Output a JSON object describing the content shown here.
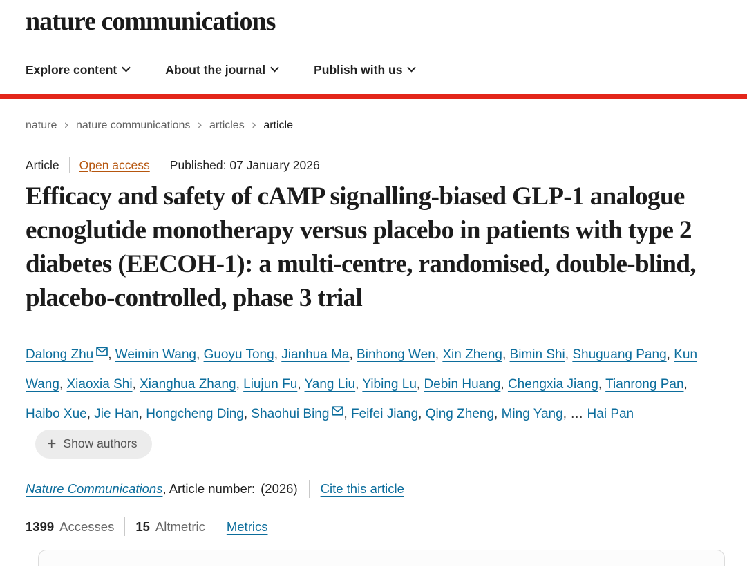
{
  "colors": {
    "accent_red": "#e3261a",
    "link_blue": "#0c6d9c",
    "open_access_orange": "#b6560e",
    "show_authors_pill_bg": "#ececec"
  },
  "header": {
    "logo_text": "nature communications",
    "nav_items": [
      {
        "label": "Explore content"
      },
      {
        "label": "About the journal"
      },
      {
        "label": "Publish with us"
      }
    ]
  },
  "breadcrumb": {
    "links": [
      {
        "label": "nature"
      },
      {
        "label": "nature communications"
      },
      {
        "label": "articles"
      }
    ],
    "separator": "›",
    "current": "article"
  },
  "meta": {
    "type_label": "Article",
    "access_label": "Open access",
    "published_text": "Published: 07 January 2026"
  },
  "title": "Efficacy and safety of cAMP signalling-biased GLP-1 analogue ecnoglutide monotherapy versus placebo in patients with type 2 diabetes (EECOH-1): a multi-centre, randomised, double-blind, placebo-controlled, phase 3 trial",
  "authors": {
    "separator": ", ",
    "list": [
      {
        "name": "Dalong Zhu",
        "envelope": true
      },
      {
        "name": "Weimin Wang"
      },
      {
        "name": "Guoyu Tong"
      },
      {
        "name": "Jianhua Ma"
      },
      {
        "name": "Binhong Wen"
      },
      {
        "name": "Xin Zheng"
      },
      {
        "name": "Bimin Shi"
      },
      {
        "name": "Shuguang Pang"
      },
      {
        "name": "Kun Wang"
      },
      {
        "name": "Xiaoxia Shi"
      },
      {
        "name": "Xianghua Zhang"
      },
      {
        "name": "Liujun Fu"
      },
      {
        "name": "Yang Liu"
      },
      {
        "name": "Yibing Lu"
      },
      {
        "name": "Debin Huang"
      },
      {
        "name": "Chengxia Jiang"
      },
      {
        "name": "Tianrong Pan"
      },
      {
        "name": "Haibo Xue"
      },
      {
        "name": "Jie Han"
      },
      {
        "name": "Hongcheng Ding"
      },
      {
        "name": "Shaohui Bing",
        "envelope": true
      },
      {
        "name": "Feifei Jiang"
      },
      {
        "name": "Qing Zheng"
      },
      {
        "name": "Ming Yang"
      },
      {
        "name": "Hai Pan",
        "pre": "… "
      }
    ],
    "show_authors": {
      "plus": "+",
      "label": "Show authors"
    }
  },
  "citation": {
    "journal": "Nature Communications",
    "article_number_text": ", Article number:",
    "year_text": "(2026)",
    "cite_link": "Cite this article"
  },
  "metrics": {
    "accesses_value": "1399",
    "accesses_label": "Accesses",
    "altmetric_value": "15",
    "altmetric_label": "Altmetric",
    "metrics_link": "Metrics"
  }
}
